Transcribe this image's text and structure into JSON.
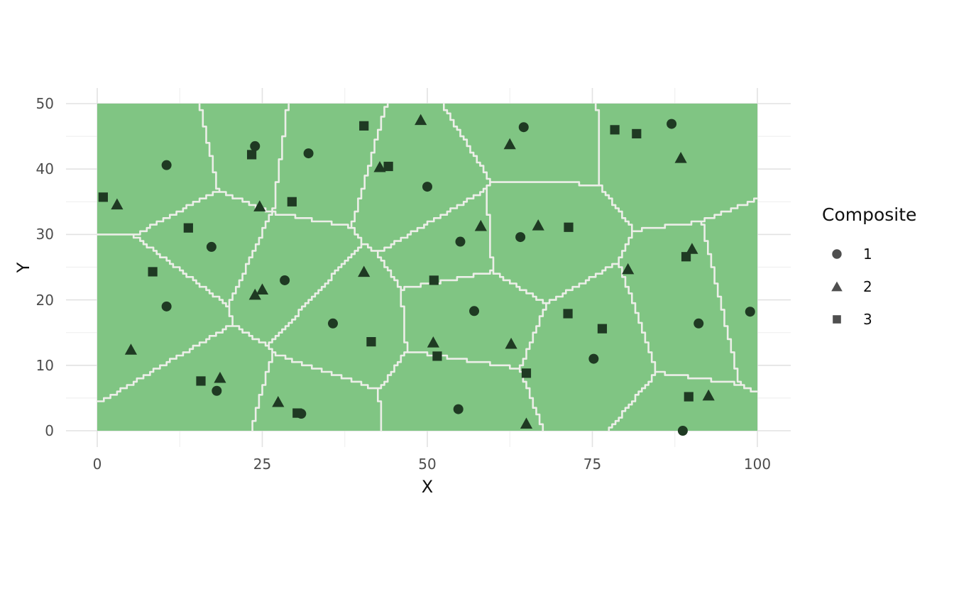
{
  "chart_data": {
    "type": "scatter",
    "title": "",
    "xlabel": "X",
    "ylabel": "Y",
    "x_ticks": [
      0,
      25,
      50,
      75,
      100
    ],
    "y_ticks": [
      0,
      10,
      20,
      30,
      40,
      50
    ],
    "x_minor_ticks": [
      12.5,
      37.5,
      62.5,
      87.5
    ],
    "y_minor_ticks": [
      5,
      15,
      25,
      35,
      45
    ],
    "xlim": [
      -5,
      105
    ],
    "ylim": [
      -2.5,
      52.5
    ],
    "region_map_extent": {
      "x": [
        0,
        100
      ],
      "y": [
        0,
        50
      ]
    },
    "grid": "on",
    "legend": {
      "title": "Composite",
      "position": "right",
      "entries": [
        {
          "label": "1",
          "marker": "circle"
        },
        {
          "label": "2",
          "marker": "triangle"
        },
        {
          "label": "3",
          "marker": "square"
        }
      ]
    },
    "series": [
      {
        "name": "1",
        "marker": "circle",
        "points": [
          [
            10.5,
            40.6
          ],
          [
            23.9,
            43.5
          ],
          [
            32.0,
            42.4
          ],
          [
            17.3,
            28.1
          ],
          [
            28.4,
            23.0
          ],
          [
            10.5,
            19.0
          ],
          [
            18.1,
            6.1
          ],
          [
            30.9,
            2.6
          ],
          [
            50.0,
            37.3
          ],
          [
            55.0,
            28.9
          ],
          [
            64.1,
            29.6
          ],
          [
            64.6,
            46.4
          ],
          [
            57.1,
            18.3
          ],
          [
            35.7,
            16.4
          ],
          [
            54.7,
            3.3
          ],
          [
            75.2,
            11.0
          ],
          [
            87.0,
            46.9
          ],
          [
            91.1,
            16.4
          ],
          [
            98.9,
            18.2
          ],
          [
            88.7,
            0.0
          ]
        ]
      },
      {
        "name": "2",
        "marker": "triangle",
        "points": [
          [
            3.0,
            34.5
          ],
          [
            24.6,
            34.2
          ],
          [
            5.1,
            12.3
          ],
          [
            18.6,
            8.0
          ],
          [
            27.4,
            4.3
          ],
          [
            23.9,
            20.7
          ],
          [
            25.0,
            21.5
          ],
          [
            42.8,
            40.2
          ],
          [
            49.0,
            47.4
          ],
          [
            62.5,
            43.7
          ],
          [
            58.1,
            31.2
          ],
          [
            66.8,
            31.3
          ],
          [
            40.4,
            24.2
          ],
          [
            50.9,
            13.4
          ],
          [
            62.7,
            13.2
          ],
          [
            65.0,
            1.0
          ],
          [
            80.4,
            24.6
          ],
          [
            88.4,
            41.6
          ],
          [
            90.1,
            27.7
          ],
          [
            92.6,
            5.3
          ]
        ]
      },
      {
        "name": "3",
        "marker": "square",
        "points": [
          [
            0.9,
            35.7
          ],
          [
            13.8,
            31.0
          ],
          [
            8.4,
            24.3
          ],
          [
            23.4,
            42.2
          ],
          [
            29.5,
            35.0
          ],
          [
            15.7,
            7.6
          ],
          [
            30.3,
            2.7
          ],
          [
            40.4,
            46.6
          ],
          [
            44.1,
            40.4
          ],
          [
            51.0,
            23.0
          ],
          [
            41.5,
            13.6
          ],
          [
            51.5,
            11.4
          ],
          [
            65.0,
            8.8
          ],
          [
            71.4,
            31.1
          ],
          [
            71.3,
            17.9
          ],
          [
            76.5,
            15.6
          ],
          [
            78.4,
            46.0
          ],
          [
            81.7,
            45.4
          ],
          [
            89.6,
            5.2
          ],
          [
            89.2,
            26.6
          ]
        ]
      }
    ],
    "colors": {
      "point": "#1F3A23",
      "tile_fill": "#80C583",
      "region_border": "#ECEEE8",
      "grid_major": "#E2E2E2",
      "grid_minor": "#F0F0F0",
      "tick_label": "#4D4D4D",
      "axis_title": "#111111",
      "legend_marker": "#4F4F4F",
      "legend_text": "#111111"
    }
  }
}
